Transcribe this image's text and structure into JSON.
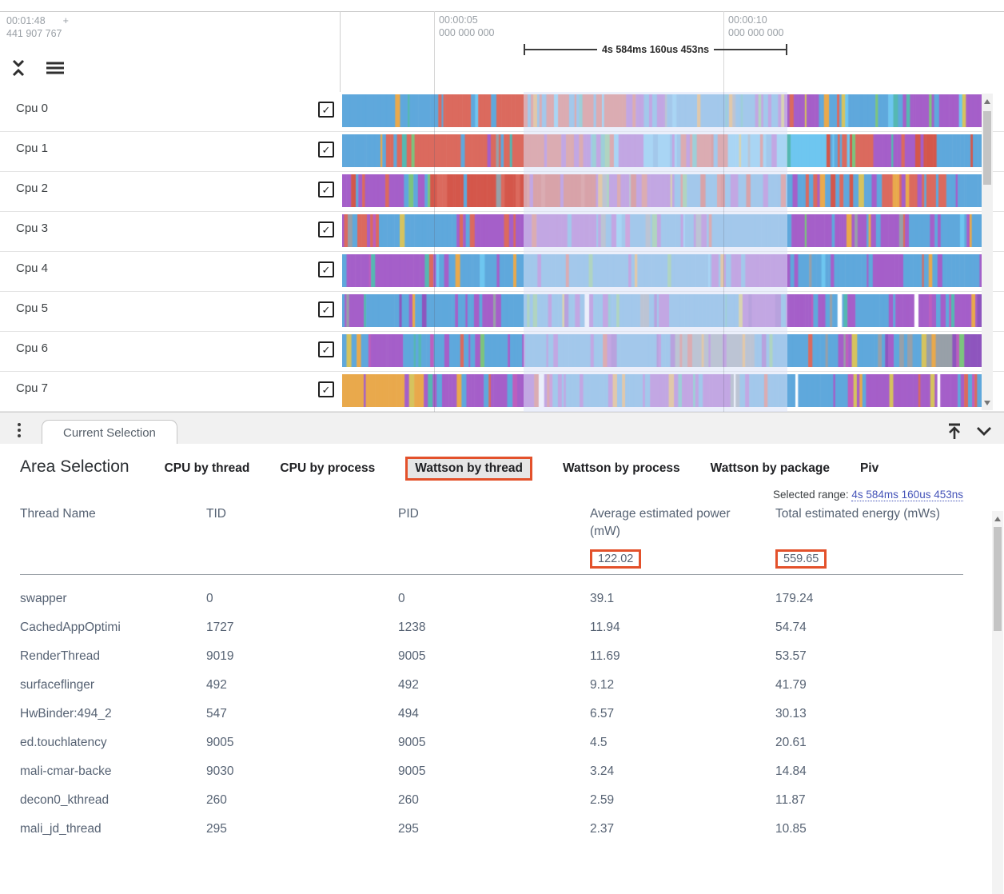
{
  "timeline": {
    "origin_time": "00:01:48",
    "plus_marker": "+",
    "origin_ns": "441 907 767",
    "ticks": [
      {
        "time": "00:00:05",
        "ns": "000 000 000"
      },
      {
        "time": "00:00:10",
        "ns": "000 000 000"
      }
    ],
    "measurement_label": "4s 584ms 160us 453ns"
  },
  "tracks": {
    "selection_overlay_color": "rgba(219,226,248,0.55)",
    "palette": {
      "blue": "#5FA8DC",
      "blue2": "#6EC6F0",
      "purple": "#A55FC9",
      "purple2": "#8E55BE",
      "coral": "#DB6A5E",
      "red": "#D4574B",
      "orange": "#E9A94C",
      "yellow": "#D6C35E",
      "teal": "#55B8B2",
      "green": "#7CC47E",
      "magenta": "#BC5FBE",
      "gray": "#98A0A8",
      "white": "#FFFFFF"
    },
    "accents": [
      "orange",
      "yellow",
      "teal",
      "green",
      "magenta",
      "gray"
    ],
    "rows": [
      {
        "label": "Cpu 0",
        "checked": true,
        "seed": 11,
        "regimes": [
          [
            "blue",
            5
          ],
          [
            "blue2",
            1.5
          ],
          [
            "purple",
            1.4
          ],
          [
            "orange",
            0.9
          ],
          [
            "coral",
            0.5
          ],
          [
            "teal",
            0.3
          ]
        ]
      },
      {
        "label": "Cpu 1",
        "checked": true,
        "seed": 22,
        "regimes": [
          [
            "coral",
            2.6
          ],
          [
            "red",
            1.2
          ],
          [
            "blue",
            2.6
          ],
          [
            "purple",
            2.2
          ],
          [
            "blue2",
            0.8
          ]
        ]
      },
      {
        "label": "Cpu 2",
        "checked": true,
        "seed": 33,
        "regimes": [
          [
            "coral",
            2.8
          ],
          [
            "red",
            1.4
          ],
          [
            "purple",
            2.2
          ],
          [
            "blue",
            2.0
          ],
          [
            "orange",
            0.4
          ]
        ]
      },
      {
        "label": "Cpu 3",
        "checked": true,
        "seed": 44,
        "regimes": [
          [
            "blue",
            2.6
          ],
          [
            "purple",
            2.6
          ],
          [
            "coral",
            1.6
          ],
          [
            "gray",
            0.6
          ],
          [
            "blue2",
            0.6
          ]
        ]
      },
      {
        "label": "Cpu 4",
        "checked": true,
        "seed": 55,
        "regimes": [
          [
            "blue",
            3.0
          ],
          [
            "purple",
            2.2
          ],
          [
            "coral",
            1.0
          ],
          [
            "orange",
            0.5
          ],
          [
            "blue2",
            0.7
          ]
        ]
      },
      {
        "label": "Cpu 5",
        "checked": true,
        "seed": 66,
        "regimes": [
          [
            "purple",
            3.0
          ],
          [
            "blue",
            2.6
          ],
          [
            "white",
            0.8
          ],
          [
            "yellow",
            0.3
          ],
          [
            "purple2",
            0.8
          ]
        ]
      },
      {
        "label": "Cpu 6",
        "checked": true,
        "seed": 77,
        "regimes": [
          [
            "purple",
            3.0
          ],
          [
            "blue",
            2.6
          ],
          [
            "coral",
            0.7
          ],
          [
            "gray",
            0.6
          ],
          [
            "purple2",
            0.8
          ]
        ]
      },
      {
        "label": "Cpu 7",
        "checked": true,
        "seed": 88,
        "regimes": [
          [
            "purple",
            3.0
          ],
          [
            "blue",
            2.4
          ],
          [
            "white",
            0.7
          ],
          [
            "orange",
            0.5
          ],
          [
            "coral",
            0.7
          ]
        ]
      }
    ]
  },
  "drawer": {
    "tab_label": "Current Selection"
  },
  "detail": {
    "title": "Area Selection",
    "tabs": [
      {
        "label": "CPU by thread",
        "selected": false
      },
      {
        "label": "CPU by process",
        "selected": false
      },
      {
        "label": "Wattson by thread",
        "selected": true
      },
      {
        "label": "Wattson by process",
        "selected": false
      },
      {
        "label": "Wattson by package",
        "selected": false
      },
      {
        "label": "Piv",
        "selected": false
      }
    ],
    "selected_range_label": "Selected range:",
    "selected_range_value": "4s 584ms 160us 453ns",
    "annotation_color": "#E3512B",
    "table": {
      "columns": [
        "Thread Name",
        "TID",
        "PID",
        "Average estimated power (mW)",
        "Total estimated energy (mWs)"
      ],
      "summary": {
        "avg_power": "122.02",
        "total_energy": "559.65"
      },
      "rows": [
        {
          "thread": "swapper",
          "tid": "0",
          "pid": "0",
          "power": "39.1",
          "energy": "179.24"
        },
        {
          "thread": "CachedAppOptimi",
          "tid": "1727",
          "pid": "1238",
          "power": "11.94",
          "energy": "54.74"
        },
        {
          "thread": "RenderThread",
          "tid": "9019",
          "pid": "9005",
          "power": "11.69",
          "energy": "53.57"
        },
        {
          "thread": "surfaceflinger",
          "tid": "492",
          "pid": "492",
          "power": "9.12",
          "energy": "41.79"
        },
        {
          "thread": "HwBinder:494_2",
          "tid": "547",
          "pid": "494",
          "power": "6.57",
          "energy": "30.13"
        },
        {
          "thread": "ed.touchlatency",
          "tid": "9005",
          "pid": "9005",
          "power": "4.5",
          "energy": "20.61"
        },
        {
          "thread": "mali-cmar-backe",
          "tid": "9030",
          "pid": "9005",
          "power": "3.24",
          "energy": "14.84"
        },
        {
          "thread": "decon0_kthread",
          "tid": "260",
          "pid": "260",
          "power": "2.59",
          "energy": "11.87"
        },
        {
          "thread": "mali_jd_thread",
          "tid": "295",
          "pid": "295",
          "power": "2.37",
          "energy": "10.85"
        }
      ]
    }
  }
}
